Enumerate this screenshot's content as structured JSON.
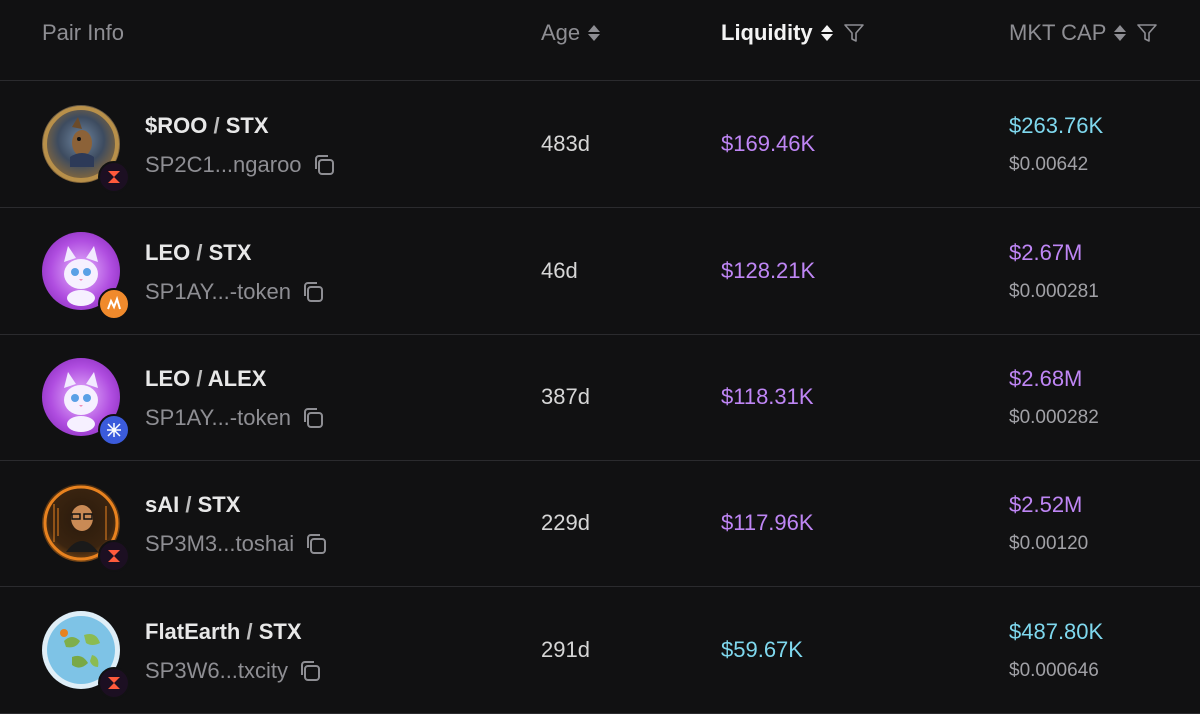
{
  "header": {
    "pair_info": "Pair Info",
    "age": "Age",
    "liquidity": "Liquidity",
    "mkt_cap": "MKT CAP"
  },
  "colors": {
    "background": "#111112",
    "purple_value": "#bf86f5",
    "cyan_value": "#7fd8ee",
    "muted_text": "#8e8e93"
  },
  "rows": [
    {
      "base": "$ROO",
      "sep": " / ",
      "quote": "STX",
      "address": "SP2C1...ngaroo",
      "age": "483d",
      "liquidity": "$169.46K",
      "liquidity_color": "purple",
      "mkt_cap": "$263.76K",
      "mkt_cap_color": "cyan",
      "price": "$0.00642",
      "avatar_icon": "kangaroo-avatar-icon",
      "badge_icon": "velar-dex-badge-icon"
    },
    {
      "base": "LEO",
      "sep": " / ",
      "quote": "STX",
      "address": "SP1AY...-token",
      "age": "46d",
      "liquidity": "$128.21K",
      "liquidity_color": "purple",
      "mkt_cap": "$2.67M",
      "mkt_cap_color": "purple",
      "price": "$0.000281",
      "avatar_icon": "leo-cat-avatar-icon",
      "badge_icon": "orange-dex-badge-icon"
    },
    {
      "base": "LEO",
      "sep": " / ",
      "quote": "ALEX",
      "address": "SP1AY...-token",
      "age": "387d",
      "liquidity": "$118.31K",
      "liquidity_color": "purple",
      "mkt_cap": "$2.68M",
      "mkt_cap_color": "purple",
      "price": "$0.000282",
      "avatar_icon": "leo-cat-avatar-icon",
      "badge_icon": "alex-dex-badge-icon"
    },
    {
      "base": "sAI",
      "sep": " / ",
      "quote": "STX",
      "address": "SP3M3...toshai",
      "age": "229d",
      "liquidity": "$117.96K",
      "liquidity_color": "purple",
      "mkt_cap": "$2.52M",
      "mkt_cap_color": "purple",
      "price": "$0.00120",
      "avatar_icon": "satoshi-ai-avatar-icon",
      "badge_icon": "velar-dex-badge-icon"
    },
    {
      "base": "FlatEarth",
      "sep": " / ",
      "quote": "STX",
      "address": "SP3W6...txcity",
      "age": "291d",
      "liquidity": "$59.67K",
      "liquidity_color": "cyan",
      "mkt_cap": "$487.80K",
      "mkt_cap_color": "cyan",
      "price": "$0.000646",
      "avatar_icon": "flat-earth-map-avatar-icon",
      "badge_icon": "velar-dex-badge-icon"
    }
  ]
}
